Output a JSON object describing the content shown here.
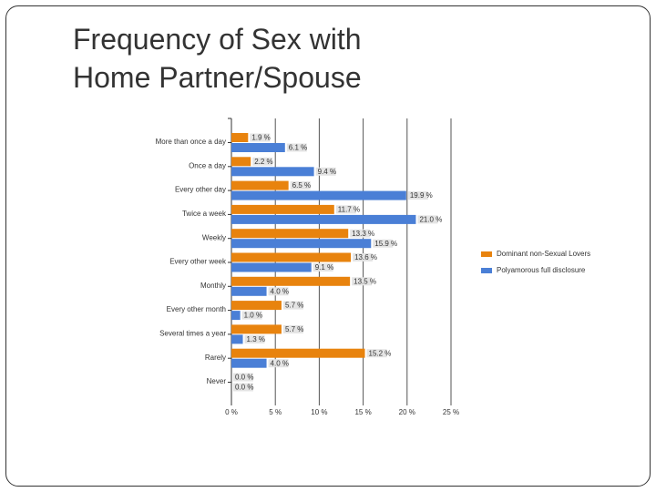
{
  "title": "Frequency of Sex with Home Partner/Spouse",
  "chart_data": {
    "type": "hbar",
    "categories": [
      "More than once a day",
      "Once a day",
      "Every other day",
      "Twice a week",
      "Weekly",
      "Every other week",
      "Monthly",
      "Every other month",
      "Several times a year",
      "Rarely",
      "Never"
    ],
    "series": [
      {
        "name": "Dominant non-Sexual Lovers",
        "color": "#e8830e",
        "values": [
          1.9,
          2.2,
          6.5,
          11.7,
          13.3,
          13.6,
          13.5,
          5.7,
          5.7,
          15.2,
          0.0
        ],
        "value_labels": [
          "1.9 %",
          "2.2 %",
          "6.5 %",
          "11.7 %",
          "13.3 %",
          "13.6 %",
          "13.5 %",
          "5.7 %",
          "5.7 %",
          "15.2 %",
          "0.0 %"
        ]
      },
      {
        "name": "Polyamorous full disclosure",
        "color": "#4a7fd6",
        "values": [
          6.1,
          9.4,
          19.9,
          21.0,
          15.9,
          9.1,
          4.0,
          1.0,
          1.3,
          4.0,
          0.0
        ],
        "value_labels": [
          "6.1 %",
          "9.4 %",
          "19.9 %",
          "21.0 %",
          "15.9 %",
          "9.1 %",
          "4.0 %",
          "1.0 %",
          "1.3 %",
          "4.0 %",
          "0.0 %"
        ]
      }
    ],
    "xlim": [
      0,
      25
    ],
    "xticks": [
      {
        "value": 0,
        "label": "0 %"
      },
      {
        "value": 5,
        "label": "5 %"
      },
      {
        "value": 10,
        "label": "10 %"
      },
      {
        "value": 15,
        "label": "15 %"
      },
      {
        "value": 20,
        "label": "20 %"
      },
      {
        "value": 25,
        "label": "25 %"
      }
    ],
    "grid": true,
    "legend": "right"
  }
}
